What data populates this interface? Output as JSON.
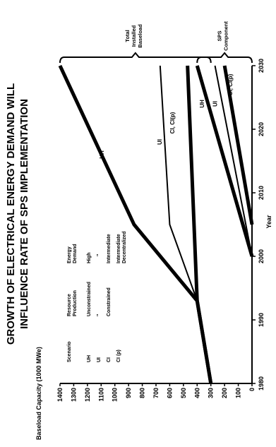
{
  "chart_data": {
    "type": "line",
    "title": "GROWTH OF ELECTRICAL ENERGY DEMAND WILL INFLUENCE RATE OF SPS IMPLEMENTATION",
    "xlabel": "Year",
    "ylabel": "Baseload Capacity (1000 MWe)",
    "xlim": [
      1980,
      2030
    ],
    "ylim": [
      0,
      1400
    ],
    "x_ticks": [
      "1980",
      "1990",
      "2000",
      "2010",
      "2020",
      "2030"
    ],
    "y_ticks": [
      "0",
      "100",
      "200",
      "300",
      "400",
      "500",
      "600",
      "700",
      "800",
      "900",
      "1000",
      "1100",
      "1200",
      "1300",
      "1400"
    ],
    "legend": {
      "headers": [
        "Scenario",
        "Resource Production",
        "Energy Demand"
      ],
      "rows": [
        {
          "scenario": "UH",
          "production": "Unconstrained",
          "demand": "High"
        },
        {
          "scenario": "UI",
          "production": "",
          "demand": ""
        },
        {
          "scenario": "CI",
          "production": "Constrained",
          "demand": "Intermediate"
        },
        {
          "scenario": "CI (p)",
          "production": "",
          "demand": "Intermediate Decentralized"
        }
      ],
      "ditto": "\""
    },
    "groups": [
      {
        "label": "Total Installed Baseload",
        "range": [
          300,
          1400
        ]
      },
      {
        "label": "SPS Component",
        "range": [
          0,
          400
        ]
      }
    ],
    "series_labels": {
      "total_uh": "UH",
      "total_ui": "UI",
      "total_ci": "CI, CI(p)",
      "sps_uh": "UH",
      "sps_ui": "UI",
      "sps_ci": "CI, CI(p)"
    },
    "series": [
      {
        "key": "total_uh",
        "x": [
          1980,
          1993,
          2005,
          2030
        ],
        "y": [
          300,
          400,
          860,
          1400
        ],
        "weight": "heavy"
      },
      {
        "key": "total_ui",
        "x": [
          1980,
          1993,
          2005,
          2030
        ],
        "y": [
          300,
          400,
          600,
          670
        ],
        "weight": "light"
      },
      {
        "key": "total_ci",
        "x": [
          1980,
          1993,
          2030
        ],
        "y": [
          300,
          400,
          470
        ],
        "weight": "heavy"
      },
      {
        "key": "sps_uh",
        "x": [
          2000,
          2030
        ],
        "y": [
          0,
          400
        ],
        "weight": "heavy"
      },
      {
        "key": "sps_ui",
        "x": [
          2000,
          2030
        ],
        "y": [
          0,
          270
        ],
        "weight": "light"
      },
      {
        "key": "sps_ci",
        "x": [
          2005,
          2030
        ],
        "y": [
          0,
          200
        ],
        "weight": "heavy"
      }
    ]
  }
}
